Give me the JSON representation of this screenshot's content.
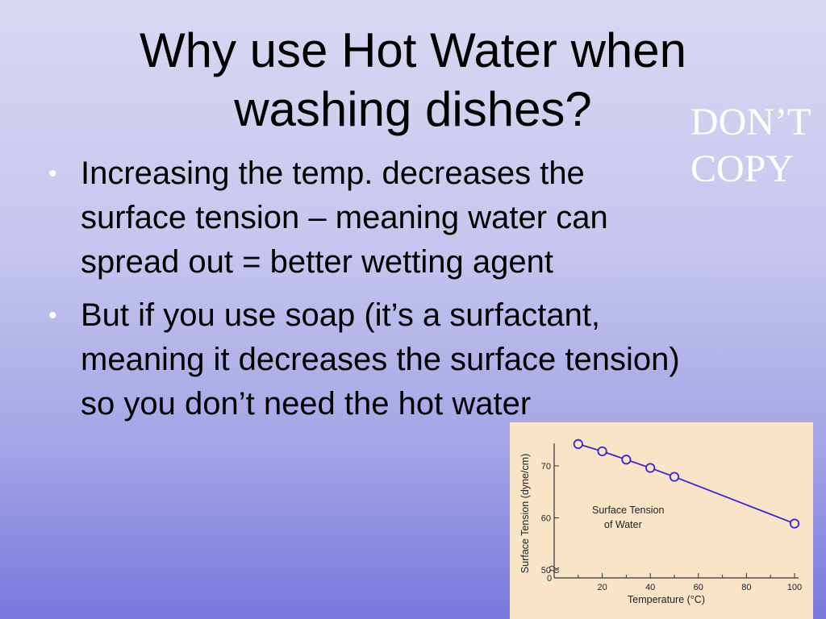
{
  "slide": {
    "title_line1": "Why use Hot Water when",
    "title_line2": "washing dishes?",
    "stamp_line1": "DON’T",
    "stamp_line2": "COPY",
    "bullets": [
      {
        "marker": "•",
        "lines": [
          "Increasing the temp. decreases the",
          "surface tension – meaning water can",
          "spread out = better wetting agent"
        ]
      },
      {
        "marker": "•",
        "lines": [
          "But if you use soap (it’s a surfactant,",
          "meaning it decreases the surface tension)",
          "so you don’t need the hot water"
        ]
      }
    ]
  },
  "chart_data": {
    "type": "line",
    "xlabel": "Temperature (°C)",
    "ylabel": "Surface Tension (dyne/cm)",
    "annotation_line1": "Surface Tension",
    "annotation_line2": "of Water",
    "x_ticks": [
      0,
      20,
      40,
      60,
      80,
      100
    ],
    "y_ticks": [
      50,
      60,
      70
    ],
    "xlim": [
      0,
      100
    ],
    "ylim": [
      50,
      73
    ],
    "y_axis_break": true,
    "series": [
      {
        "x": [
          10,
          20,
          30,
          40,
          50,
          100
        ],
        "y": [
          74.2,
          72.8,
          71.2,
          69.6,
          67.9,
          58.9
        ]
      }
    ],
    "colors": {
      "line": "#3a22d4",
      "background": "#fae4c8"
    }
  }
}
